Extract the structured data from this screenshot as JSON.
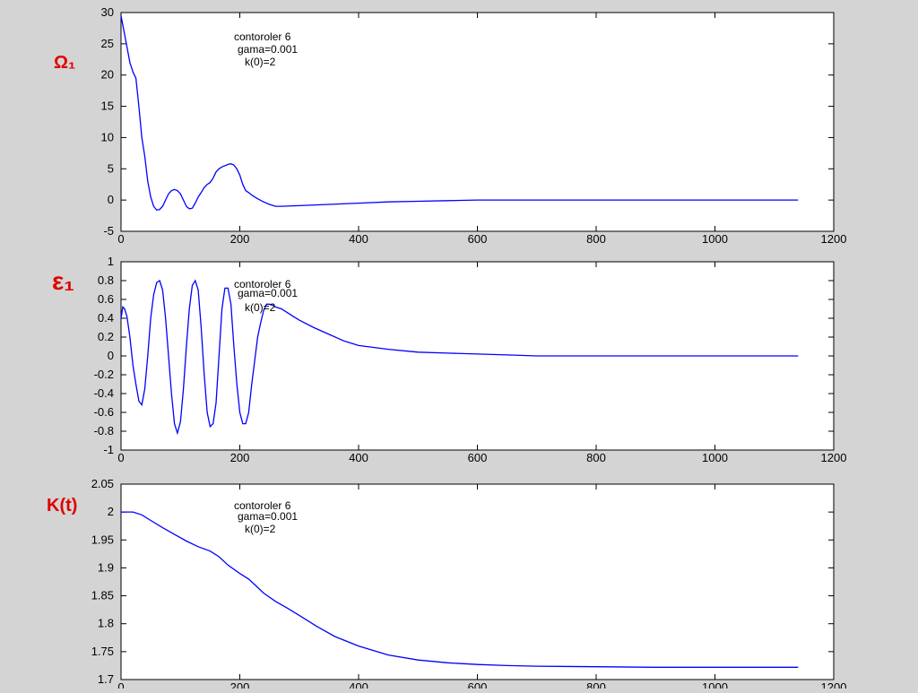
{
  "colors": {
    "background": "#d4d4d4",
    "plot_background": "#ffffff",
    "series": "#0000ff",
    "side_label": "#e00000"
  },
  "chart_data": [
    {
      "type": "line",
      "side_label": "Ω₁",
      "annotations": [
        "contoroler 6",
        "gama=0.001",
        "k(0)=2"
      ],
      "xlim": [
        0,
        1200
      ],
      "ylim": [
        -5,
        30
      ],
      "xticks": [
        0,
        200,
        400,
        600,
        800,
        1000,
        1200
      ],
      "xtick_labels": [
        "0",
        "200",
        "400",
        "600",
        "800",
        "1000",
        "1200"
      ],
      "yticks": [
        30,
        25,
        20,
        15,
        10,
        5,
        0,
        -5
      ],
      "ytick_labels": [
        "30",
        "25",
        "20",
        "15",
        "10",
        "5",
        "0",
        "-5"
      ],
      "grid": false,
      "series": [
        {
          "color": "#0000ff",
          "x": [
            0,
            5,
            10,
            15,
            20,
            25,
            30,
            35,
            40,
            45,
            50,
            55,
            60,
            65,
            70,
            75,
            80,
            85,
            90,
            95,
            100,
            105,
            110,
            115,
            120,
            125,
            130,
            135,
            140,
            145,
            150,
            155,
            160,
            165,
            170,
            175,
            180,
            185,
            190,
            195,
            200,
            205,
            210,
            215,
            220,
            225,
            230,
            240,
            250,
            260,
            270,
            300,
            350,
            400,
            450,
            500,
            550,
            600,
            700,
            800,
            900,
            1000,
            1140
          ],
          "y": [
            29.5,
            27,
            24.5,
            22,
            20.5,
            19.5,
            15,
            10,
            7,
            3,
            0.5,
            -1,
            -1.6,
            -1.5,
            -1,
            0,
            1,
            1.5,
            1.7,
            1.5,
            1,
            0,
            -1,
            -1.4,
            -1.3,
            -0.5,
            0.5,
            1.2,
            2,
            2.5,
            2.8,
            3.5,
            4.5,
            5,
            5.3,
            5.5,
            5.7,
            5.8,
            5.6,
            5,
            4,
            2.5,
            1.5,
            1.2,
            0.8,
            0.5,
            0.2,
            -0.3,
            -0.7,
            -1,
            -1,
            -0.9,
            -0.7,
            -0.5,
            -0.3,
            -0.2,
            -0.1,
            0,
            0,
            0,
            0,
            0,
            0
          ]
        }
      ]
    },
    {
      "type": "line",
      "side_label": "ε₁",
      "annotations": [
        "contoroler 6",
        "gama=0.001",
        "k(0)=2"
      ],
      "xlim": [
        0,
        1200
      ],
      "ylim": [
        -1,
        1
      ],
      "xticks": [
        0,
        200,
        400,
        600,
        800,
        1000,
        1200
      ],
      "xtick_labels": [
        "0",
        "200",
        "400",
        "600",
        "800",
        "1000",
        "1200"
      ],
      "yticks": [
        1,
        0.8,
        0.6,
        0.4,
        0.2,
        0,
        -0.2,
        -0.4,
        -0.6,
        -0.8,
        -1
      ],
      "ytick_labels": [
        "1",
        "0.8",
        "0.6",
        "0.4",
        "0.2",
        "0",
        "-0.2",
        "-0.4",
        "-0.6",
        "-0.8",
        "-1"
      ],
      "grid": false,
      "series": [
        {
          "color": "#0000ff",
          "x": [
            0,
            3,
            6,
            10,
            15,
            20,
            25,
            30,
            35,
            40,
            45,
            50,
            55,
            60,
            65,
            70,
            75,
            80,
            85,
            90,
            95,
            100,
            105,
            110,
            115,
            120,
            125,
            130,
            135,
            140,
            145,
            150,
            155,
            160,
            165,
            170,
            175,
            180,
            185,
            190,
            195,
            200,
            205,
            210,
            215,
            220,
            225,
            230,
            235,
            240,
            245,
            250,
            255,
            260,
            270,
            280,
            290,
            300,
            325,
            350,
            375,
            400,
            450,
            500,
            550,
            600,
            650,
            700,
            800,
            900,
            1000,
            1140
          ],
          "y": [
            0.4,
            0.52,
            0.5,
            0.42,
            0.2,
            -0.1,
            -0.3,
            -0.48,
            -0.52,
            -0.35,
            0,
            0.4,
            0.65,
            0.78,
            0.8,
            0.7,
            0.4,
            0,
            -0.4,
            -0.72,
            -0.82,
            -0.7,
            -0.35,
            0.1,
            0.5,
            0.75,
            0.8,
            0.7,
            0.3,
            -0.2,
            -0.6,
            -0.75,
            -0.72,
            -0.5,
            0,
            0.5,
            0.72,
            0.72,
            0.55,
            0.1,
            -0.3,
            -0.6,
            -0.72,
            -0.72,
            -0.6,
            -0.3,
            -0.05,
            0.2,
            0.35,
            0.48,
            0.55,
            0.55,
            0.54,
            0.52,
            0.5,
            0.46,
            0.42,
            0.38,
            0.3,
            0.23,
            0.16,
            0.11,
            0.07,
            0.04,
            0.03,
            0.02,
            0.01,
            0,
            0,
            0,
            0,
            0
          ]
        }
      ]
    },
    {
      "type": "line",
      "side_label": "K(t)",
      "annotations": [
        "contoroler 6",
        "gama=0.001",
        "k(0)=2"
      ],
      "xlim": [
        0,
        1200
      ],
      "ylim": [
        1.7,
        2.05
      ],
      "xticks": [
        0,
        200,
        400,
        600,
        800,
        1000,
        1200
      ],
      "xtick_labels": [
        "0",
        "200",
        "400",
        "600",
        "800",
        "1000",
        "1200"
      ],
      "yticks": [
        2.05,
        2,
        1.95,
        1.9,
        1.85,
        1.8,
        1.75,
        1.7
      ],
      "ytick_labels": [
        "2.05",
        "2",
        "1.95",
        "1.9",
        "1.85",
        "1.8",
        "1.75",
        "1.7"
      ],
      "grid": false,
      "series": [
        {
          "color": "#0000ff",
          "x": [
            0,
            20,
            35,
            50,
            70,
            90,
            110,
            130,
            150,
            165,
            180,
            200,
            215,
            225,
            240,
            260,
            280,
            300,
            330,
            360,
            400,
            450,
            500,
            550,
            600,
            650,
            700,
            800,
            900,
            1000,
            1140
          ],
          "y": [
            2.0,
            2.0,
            1.995,
            1.985,
            1.972,
            1.96,
            1.948,
            1.938,
            1.93,
            1.92,
            1.905,
            1.89,
            1.88,
            1.87,
            1.855,
            1.84,
            1.828,
            1.815,
            1.795,
            1.777,
            1.76,
            1.744,
            1.735,
            1.73,
            1.727,
            1.725,
            1.724,
            1.723,
            1.722,
            1.722,
            1.722
          ]
        }
      ]
    }
  ]
}
